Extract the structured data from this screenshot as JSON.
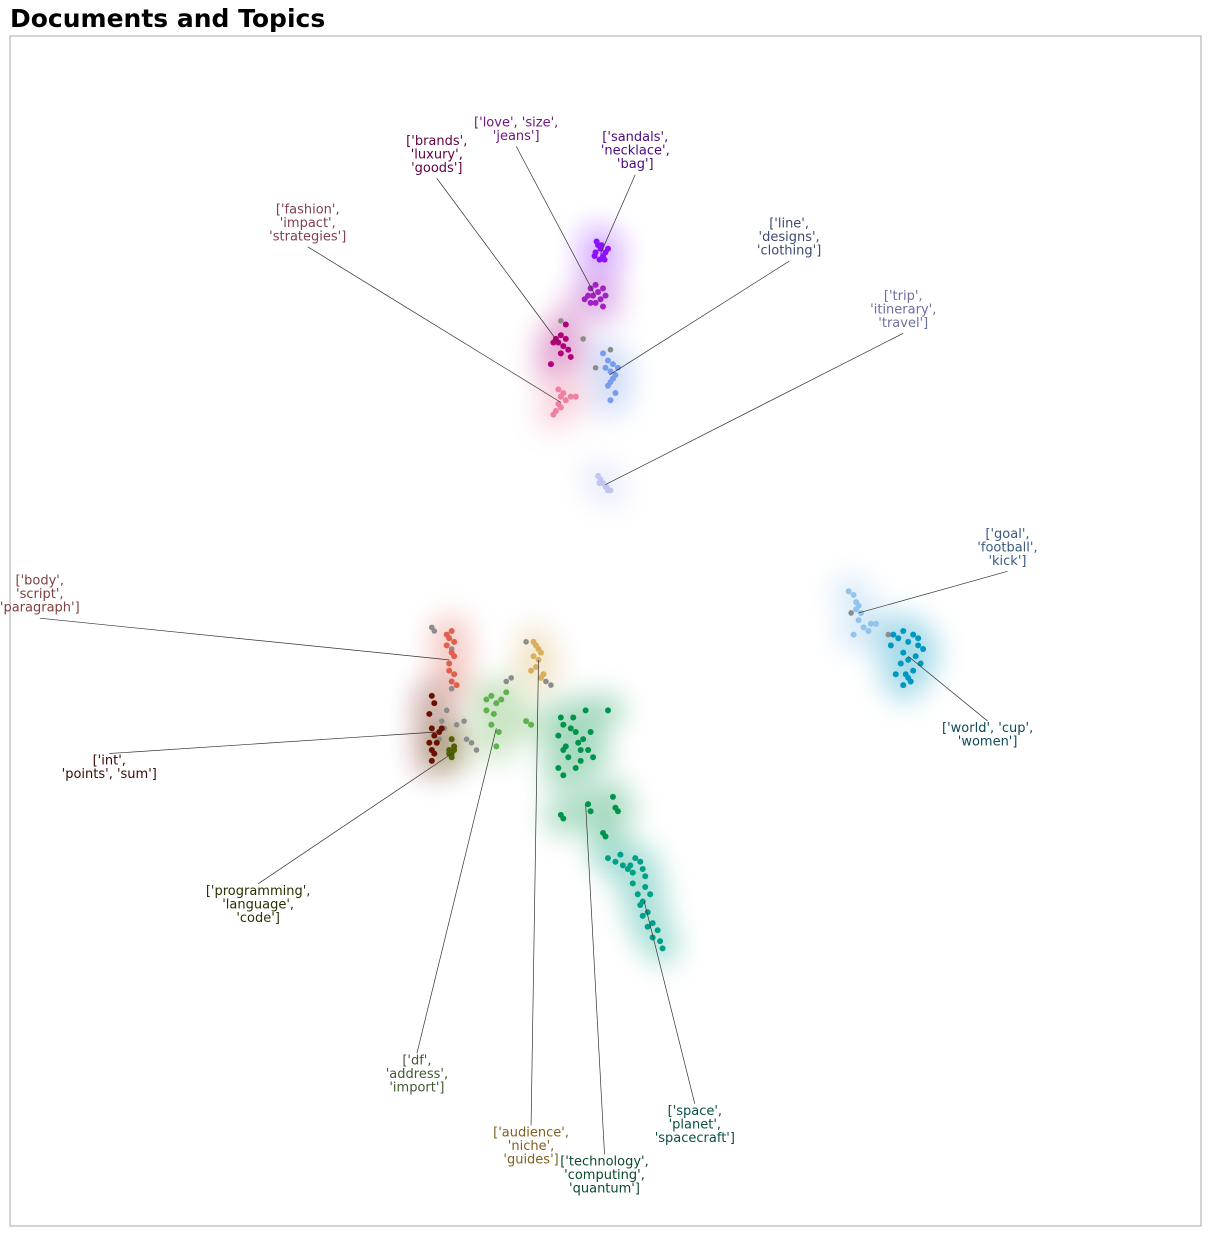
{
  "title": "Documents and Topics",
  "chart_data": {
    "type": "scatter",
    "title": "Documents and Topics",
    "xlabel": "",
    "ylabel": "",
    "grid": false,
    "axes_ticks": false,
    "outlier_color": "#8c8c8c",
    "topics": [
      {
        "label": [
          "['love', 'size',",
          "'jeans']"
        ],
        "color": "#a020c0",
        "text_color": "#6a1a80",
        "points": [
          [
            -0.42,
            7.55
          ],
          [
            -0.35,
            7.6
          ],
          [
            -0.3,
            7.7
          ],
          [
            -0.25,
            7.6
          ],
          [
            -0.2,
            7.5
          ],
          [
            -0.15,
            7.65
          ],
          [
            -0.1,
            7.55
          ],
          [
            -0.05,
            7.7
          ],
          [
            0,
            7.6
          ],
          [
            -0.05,
            7.45
          ],
          [
            -0.3,
            7.5
          ],
          [
            -0.2,
            7.75
          ]
        ],
        "anchor": [
          -0.22,
          7.62
        ],
        "label_at": [
          -1.8,
          9.9
        ]
      },
      {
        "label": [
          "['sandals',",
          "'necklace',",
          "'bag']"
        ],
        "color": "#8a10ff",
        "text_color": "#4b0a85",
        "points": [
          [
            -0.2,
            8.2
          ],
          [
            -0.15,
            8.3
          ],
          [
            -0.1,
            8.25
          ],
          [
            -0.05,
            8.15
          ],
          [
            0,
            8.2
          ],
          [
            -0.12,
            8.1
          ],
          [
            -0.18,
            8.35
          ],
          [
            -0.08,
            8.3
          ],
          [
            0.05,
            8.25
          ],
          [
            -0.22,
            8.15
          ],
          [
            -0.02,
            8.1
          ]
        ],
        "anchor": [
          -0.1,
          8.18
        ],
        "label_at": [
          0.6,
          9.6
        ]
      },
      {
        "label": [
          "['brands',",
          "'luxury',",
          "'goods']"
        ],
        "color": "#b0007a",
        "text_color": "#600040",
        "points": [
          [
            -1.0,
            7.0
          ],
          [
            -0.95,
            6.95
          ],
          [
            -0.9,
            7.05
          ],
          [
            -0.85,
            6.9
          ],
          [
            -0.8,
            7.0
          ],
          [
            -0.75,
            6.85
          ],
          [
            -0.9,
            6.8
          ],
          [
            -1.05,
            6.95
          ],
          [
            -0.7,
            6.75
          ],
          [
            -1.1,
            6.65
          ],
          [
            -0.8,
            7.2
          ]
        ],
        "anchor": [
          -0.95,
          6.95
        ],
        "label_at": [
          -3.4,
          9.55
        ]
      },
      {
        "label": [
          "['fashion',",
          "'impact',",
          "'strategies']"
        ],
        "color": "#f080a0",
        "text_color": "#804050",
        "points": [
          [
            -0.95,
            6.1
          ],
          [
            -0.9,
            6.2
          ],
          [
            -0.85,
            6.25
          ],
          [
            -0.9,
            6.05
          ],
          [
            -1.0,
            6.0
          ],
          [
            -1.05,
            5.95
          ],
          [
            -0.8,
            6.15
          ],
          [
            -0.7,
            6.2
          ],
          [
            -0.6,
            6.2
          ],
          [
            -0.95,
            6.3
          ]
        ],
        "anchor": [
          -0.9,
          6.12
        ],
        "label_at": [
          -6.0,
          8.6
        ]
      },
      {
        "label": [
          "['line',",
          "'designs',",
          "'clothing']"
        ],
        "color": "#7a9cec",
        "text_color": "#3a4a70",
        "points": [
          [
            0,
            6.6
          ],
          [
            0.05,
            6.7
          ],
          [
            0.1,
            6.55
          ],
          [
            0.15,
            6.65
          ],
          [
            0.2,
            6.5
          ],
          [
            0.1,
            6.4
          ],
          [
            0.05,
            6.35
          ],
          [
            0.2,
            6.25
          ],
          [
            0.1,
            6.15
          ],
          [
            -0.05,
            6.8
          ],
          [
            0.15,
            6.45
          ],
          [
            0.25,
            6.6
          ]
        ],
        "anchor": [
          0.08,
          6.5
        ],
        "label_at": [
          3.7,
          8.4
        ]
      },
      {
        "label": [
          "['trip',",
          "'itinerary',",
          "'travel']"
        ],
        "color": "#c0c6f0",
        "text_color": "#6b70a0",
        "points": [
          [
            -0.15,
            5.1
          ],
          [
            -0.1,
            5.05
          ],
          [
            -0.05,
            5.0
          ],
          [
            0,
            4.95
          ],
          [
            0.05,
            4.9
          ],
          [
            0.1,
            4.9
          ],
          [
            -0.12,
            5.0
          ],
          [
            0.02,
            4.95
          ]
        ],
        "anchor": [
          0,
          4.98
        ],
        "label_at": [
          6.0,
          7.4
        ]
      },
      {
        "label": [
          "['goal',",
          "'football',",
          "'kick']"
        ],
        "color": "#90c4ec",
        "text_color": "#3a5a80",
        "points": [
          [
            4.9,
            3.5
          ],
          [
            5.0,
            3.45
          ],
          [
            5.05,
            3.35
          ],
          [
            5.1,
            3.3
          ],
          [
            5.15,
            3.2
          ],
          [
            5.1,
            3.1
          ],
          [
            5.2,
            3.0
          ],
          [
            5.35,
            3.05
          ],
          [
            5.45,
            3.05
          ],
          [
            5.0,
            2.9
          ],
          [
            5.3,
            2.95
          ],
          [
            5.05,
            3.25
          ]
        ],
        "anchor": [
          5.1,
          3.2
        ],
        "label_at": [
          8.1,
          4.1
        ]
      },
      {
        "label": [
          "['world', 'cup',",
          "'women']"
        ],
        "color": "#0098c0",
        "text_color": "#0f4a5a",
        "points": [
          [
            5.8,
            2.9
          ],
          [
            5.9,
            2.85
          ],
          [
            6.0,
            2.95
          ],
          [
            6.1,
            2.8
          ],
          [
            6.2,
            2.9
          ],
          [
            6.3,
            2.75
          ],
          [
            6.25,
            2.6
          ],
          [
            6.1,
            2.55
          ],
          [
            6.0,
            2.65
          ],
          [
            5.95,
            2.5
          ],
          [
            6.05,
            2.35
          ],
          [
            6.2,
            2.4
          ],
          [
            6.35,
            2.5
          ],
          [
            6.4,
            2.7
          ],
          [
            6.15,
            2.25
          ],
          [
            6.0,
            2.2
          ],
          [
            5.85,
            2.35
          ],
          [
            6.3,
            2.85
          ],
          [
            5.75,
            2.75
          ],
          [
            6.1,
            2.3
          ]
        ],
        "anchor": [
          6.1,
          2.6
        ],
        "label_at": [
          7.7,
          1.5
        ]
      },
      {
        "label": [
          "['body',",
          "'script',",
          "'paragraph']"
        ],
        "color": "#e06050",
        "text_color": "#804040",
        "points": [
          [
            -3.2,
            2.9
          ],
          [
            -3.15,
            2.85
          ],
          [
            -3.1,
            2.95
          ],
          [
            -3.05,
            2.8
          ],
          [
            -3.1,
            2.65
          ],
          [
            -3.15,
            2.5
          ],
          [
            -3.05,
            2.35
          ],
          [
            -3.1,
            2.25
          ],
          [
            -3.0,
            2.2
          ],
          [
            -3.15,
            2.4
          ],
          [
            -3.05,
            2.6
          ],
          [
            -3.2,
            2.75
          ]
        ],
        "anchor": [
          -3.15,
          2.55
        ],
        "label_at": [
          -11.4,
          3.45
        ]
      },
      {
        "label": [
          "['int',",
          "'points', 'sum']"
        ],
        "color": "#6a1000",
        "text_color": "#3a0800",
        "points": [
          [
            -3.5,
            2.05
          ],
          [
            -3.45,
            1.95
          ],
          [
            -3.55,
            1.8
          ],
          [
            -3.5,
            1.6
          ],
          [
            -3.45,
            1.5
          ],
          [
            -3.4,
            1.4
          ],
          [
            -3.55,
            1.4
          ],
          [
            -3.5,
            1.3
          ],
          [
            -3.35,
            1.55
          ],
          [
            -3.3,
            1.6
          ],
          [
            -3.5,
            1.15
          ],
          [
            -3.45,
            1.25
          ]
        ],
        "anchor": [
          -3.4,
          1.55
        ],
        "label_at": [
          -10.0,
          1.05
        ]
      },
      {
        "label": [
          "['programming',",
          "'language',",
          "'code']"
        ],
        "color": "#506000",
        "text_color": "#2a3000",
        "points": [
          [
            -3.15,
            1.3
          ],
          [
            -3.1,
            1.25
          ],
          [
            -3.05,
            1.3
          ],
          [
            -3.1,
            1.2
          ],
          [
            -3.15,
            1.25
          ],
          [
            -3.05,
            1.35
          ],
          [
            -3.1,
            1.45
          ]
        ],
        "anchor": [
          -3.1,
          1.25
        ],
        "label_at": [
          -7.0,
          -0.85
        ]
      },
      {
        "label": [
          "['df',",
          "'address',",
          "'import']"
        ],
        "color": "#60b050",
        "text_color": "#405a30",
        "points": [
          [
            -2.4,
            2.0
          ],
          [
            -2.3,
            2.05
          ],
          [
            -2.2,
            1.95
          ],
          [
            -2.1,
            2.0
          ],
          [
            -2.0,
            2.1
          ],
          [
            -2.25,
            1.8
          ],
          [
            -2.3,
            1.65
          ],
          [
            -2.15,
            1.55
          ],
          [
            -2.4,
            1.85
          ],
          [
            -2.2,
            1.35
          ],
          [
            -1.6,
            1.7
          ],
          [
            -1.5,
            1.65
          ]
        ],
        "anchor": [
          -2.2,
          1.6
        ],
        "label_at": [
          -3.8,
          -3.2
        ]
      },
      {
        "label": [
          "['audience',",
          "'niche',",
          "'guides']"
        ],
        "color": "#d8b060",
        "text_color": "#806020",
        "points": [
          [
            -1.45,
            2.8
          ],
          [
            -1.4,
            2.75
          ],
          [
            -1.35,
            2.7
          ],
          [
            -1.3,
            2.65
          ],
          [
            -1.35,
            2.55
          ],
          [
            -1.4,
            2.45
          ],
          [
            -1.25,
            2.35
          ],
          [
            -1.3,
            2.3
          ],
          [
            -1.45,
            2.6
          ],
          [
            -1.5,
            2.4
          ]
        ],
        "anchor": [
          -1.35,
          2.55
        ],
        "label_at": [
          -1.5,
          -4.2
        ]
      },
      {
        "label": [
          "['technology',",
          "'computing',",
          "'quantum']"
        ],
        "color": "#00944a",
        "text_color": "#0a4a2a",
        "points": [
          [
            -0.9,
            1.75
          ],
          [
            -0.85,
            1.65
          ],
          [
            -0.7,
            1.6
          ],
          [
            -0.6,
            1.55
          ],
          [
            -0.55,
            1.4
          ],
          [
            -0.45,
            1.45
          ],
          [
            -0.35,
            1.3
          ],
          [
            -0.5,
            1.15
          ],
          [
            -0.6,
            1.05
          ],
          [
            -0.75,
            1.2
          ],
          [
            -0.85,
            1.3
          ],
          [
            -0.95,
            1.5
          ],
          [
            -0.3,
            1.55
          ],
          [
            -0.4,
            1.85
          ],
          [
            -0.25,
            1.2
          ],
          [
            -0.95,
            1.05
          ],
          [
            -0.85,
            0.95
          ],
          [
            -0.35,
            0.55
          ],
          [
            -0.3,
            0.45
          ],
          [
            -0.9,
            0.4
          ],
          [
            -0.85,
            0.35
          ],
          [
            0.15,
            0.65
          ],
          [
            0.2,
            0.5
          ],
          [
            0.25,
            0.45
          ],
          [
            -0.05,
            0.15
          ],
          [
            0.0,
            0.1
          ],
          [
            -0.8,
            1.35
          ],
          [
            -0.5,
            1.3
          ],
          [
            -0.65,
            1.75
          ],
          [
            0.05,
            1.85
          ]
        ],
        "anchor": [
          -0.4,
          0.55
        ],
        "label_at": [
          -0.02,
          -4.6
        ]
      },
      {
        "label": [
          "['space',",
          "'planet',",
          "'spacecraft']"
        ],
        "color": "#00a088",
        "text_color": "#0a5048",
        "points": [
          [
            0.05,
            -0.2
          ],
          [
            0.2,
            -0.25
          ],
          [
            0.35,
            -0.3
          ],
          [
            0.45,
            -0.35
          ],
          [
            0.55,
            -0.4
          ],
          [
            0.6,
            -0.2
          ],
          [
            0.7,
            -0.25
          ],
          [
            0.75,
            -0.35
          ],
          [
            0.8,
            -0.45
          ],
          [
            0.55,
            -0.55
          ],
          [
            0.65,
            -0.7
          ],
          [
            0.75,
            -0.8
          ],
          [
            0.85,
            -0.95
          ],
          [
            0.95,
            -1.1
          ],
          [
            1.05,
            -1.2
          ],
          [
            1.1,
            -1.35
          ],
          [
            0.95,
            -1.3
          ],
          [
            0.85,
            -1.15
          ],
          [
            0.75,
            -1.0
          ],
          [
            0.7,
            -0.85
          ],
          [
            0.8,
            -0.6
          ],
          [
            0.9,
            -0.7
          ],
          [
            1.15,
            -1.45
          ],
          [
            0.3,
            -0.15
          ],
          [
            0.5,
            -0.3
          ]
        ],
        "anchor": [
          0.78,
          -0.8
        ],
        "label_at": [
          1.8,
          -3.9
        ]
      }
    ],
    "outliers": [
      [
        -0.45,
        7.0
      ],
      [
        -0.9,
        7.25
      ],
      [
        -0.2,
        6.6
      ],
      [
        0.1,
        6.85
      ],
      [
        -3.5,
        3.0
      ],
      [
        -3.45,
        2.95
      ],
      [
        -3.1,
        2.7
      ],
      [
        -2.6,
        1.3
      ],
      [
        -2.7,
        1.4
      ],
      [
        -2.8,
        1.45
      ],
      [
        -2.85,
        1.7
      ],
      [
        -3.25,
        1.6
      ],
      [
        -3.2,
        1.85
      ],
      [
        -3.1,
        2.15
      ],
      [
        -3.0,
        1.65
      ],
      [
        -2.0,
        2.25
      ],
      [
        -1.9,
        2.3
      ],
      [
        -1.6,
        2.8
      ],
      [
        -1.2,
        2.25
      ],
      [
        -1.1,
        2.2
      ],
      [
        4.95,
        3.2
      ],
      [
        5.7,
        2.9
      ],
      [
        -3.35,
        1.45
      ],
      [
        -3.3,
        1.7
      ]
    ]
  }
}
